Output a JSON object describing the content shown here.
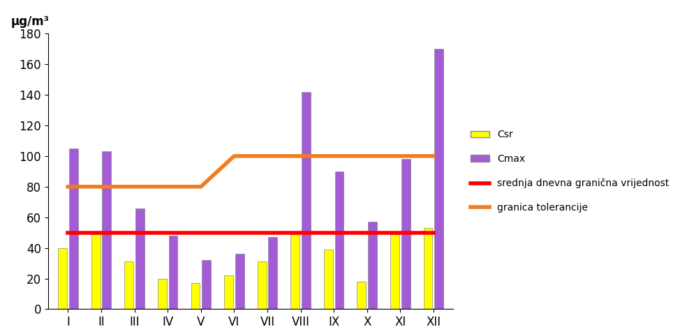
{
  "chart_data": {
    "type": "bar",
    "y_label": "µg/m³",
    "categories": [
      "I",
      "II",
      "III",
      "IV",
      "V",
      "VI",
      "VII",
      "VIII",
      "IX",
      "X",
      "XI",
      "XII"
    ],
    "series": [
      {
        "name": "Csr",
        "type": "bar",
        "color": "#ffff00",
        "values": [
          40,
          49,
          31,
          20,
          17,
          22,
          31,
          49,
          39,
          18,
          49,
          53
        ]
      },
      {
        "name": "Cmax",
        "type": "bar",
        "color": "#a35bd6",
        "values": [
          105,
          103,
          66,
          48,
          32,
          36,
          47,
          142,
          90,
          57,
          98,
          170
        ]
      },
      {
        "name": "srednja dnevna granična vrijednost",
        "type": "line",
        "color": "#ff0000",
        "values": [
          50,
          50,
          50,
          50,
          50,
          50,
          50,
          50,
          50,
          50,
          50,
          50
        ]
      },
      {
        "name": "granica tolerancije",
        "type": "line",
        "color": "#f07d1e",
        "values": [
          80,
          80,
          80,
          80,
          80,
          100,
          100,
          100,
          100,
          100,
          100,
          100
        ]
      }
    ],
    "ylim": [
      0,
      180
    ],
    "yticks": [
      0,
      20,
      40,
      60,
      80,
      100,
      120,
      140,
      160,
      180
    ],
    "grid": false,
    "legend": "right"
  }
}
